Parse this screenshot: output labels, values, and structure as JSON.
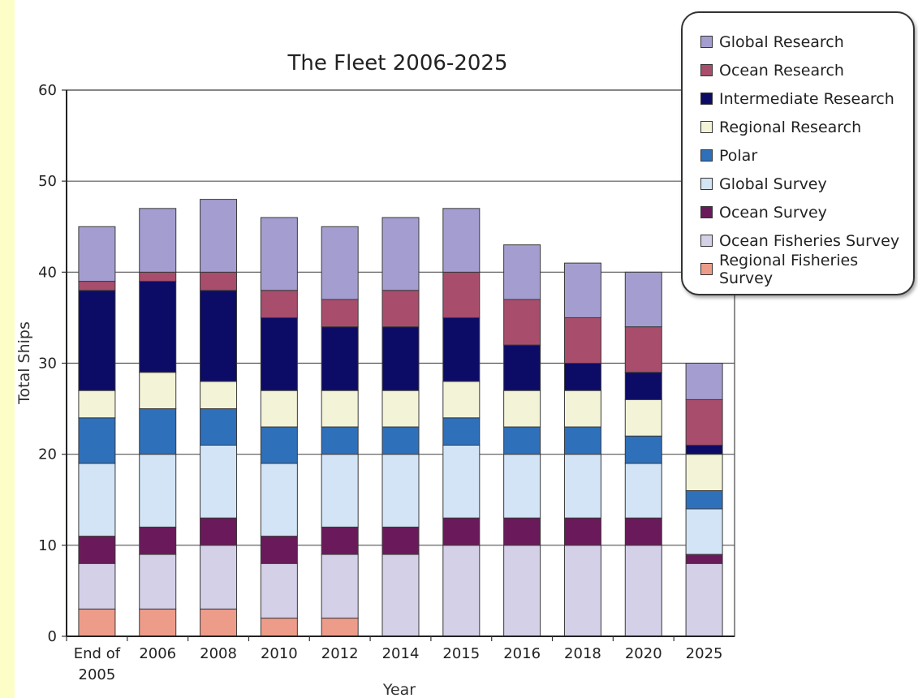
{
  "chart_data": {
    "type": "bar",
    "stacked": true,
    "title": "The Fleet 2006-2025",
    "xlabel": "Year",
    "ylabel": "Total Ships",
    "ylim": [
      0,
      60
    ],
    "yticks": [
      0,
      10,
      20,
      30,
      40,
      50,
      60
    ],
    "grid": true,
    "legend_position": "top-right",
    "categories": [
      "End of\n2005",
      "2006",
      "2008",
      "2010",
      "2012",
      "2014",
      "2015",
      "2016",
      "2018",
      "2020",
      "2025"
    ],
    "series": [
      {
        "name": "Regional Fisheries Survey",
        "color": "#ee9c8a",
        "values": [
          3,
          3,
          3,
          2,
          2,
          0,
          0,
          0,
          0,
          0,
          0
        ]
      },
      {
        "name": "Ocean Fisheries Survey",
        "color": "#d4d0e8",
        "values": [
          5,
          6,
          7,
          6,
          7,
          9,
          10,
          10,
          10,
          10,
          8
        ]
      },
      {
        "name": "Ocean Survey",
        "color": "#6a1a5a",
        "values": [
          3,
          3,
          3,
          3,
          3,
          3,
          3,
          3,
          3,
          3,
          1
        ]
      },
      {
        "name": "Global Survey",
        "color": "#d2e4f6",
        "values": [
          8,
          8,
          8,
          8,
          8,
          8,
          8,
          7,
          7,
          6,
          5
        ]
      },
      {
        "name": "Polar",
        "color": "#2f70ba",
        "values": [
          5,
          5,
          4,
          4,
          3,
          3,
          3,
          3,
          3,
          3,
          2
        ]
      },
      {
        "name": "Regional Research",
        "color": "#f3f3d8",
        "values": [
          3,
          4,
          3,
          4,
          4,
          4,
          4,
          4,
          4,
          4,
          4
        ]
      },
      {
        "name": "Intermediate Research",
        "color": "#0c0c66",
        "values": [
          11,
          10,
          10,
          8,
          7,
          7,
          7,
          5,
          3,
          3,
          1
        ]
      },
      {
        "name": "Ocean Research",
        "color": "#a84e6c",
        "values": [
          1,
          1,
          2,
          3,
          3,
          4,
          5,
          5,
          5,
          5,
          5
        ]
      },
      {
        "name": "Global Research",
        "color": "#a49ed0",
        "values": [
          6,
          7,
          8,
          8,
          8,
          8,
          7,
          6,
          6,
          6,
          4
        ]
      }
    ]
  }
}
